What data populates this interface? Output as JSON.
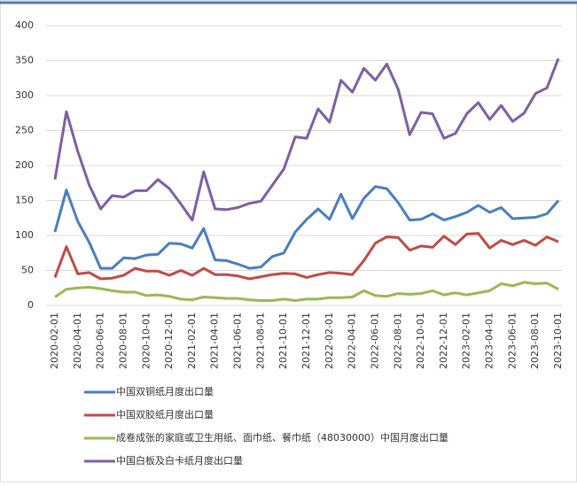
{
  "chart_data": {
    "type": "line",
    "categories": [
      "2020-02-01",
      null,
      "2020-04-01",
      null,
      "2020-06-01",
      null,
      "2020-08-01",
      null,
      "2020-10-01",
      null,
      "2020-12-01",
      null,
      "2021-02-01",
      null,
      "2021-04-01",
      null,
      "2021-06-01",
      null,
      "2021-08-01",
      null,
      "2021-10-01",
      null,
      "2021-12-01",
      null,
      "2022-02-01",
      null,
      "2022-04-01",
      null,
      "2022-06-01",
      null,
      "2022-08-01",
      null,
      "2022-10-01",
      null,
      "2022-12-01",
      null,
      "2023-02-01",
      null,
      "2023-04-01",
      null,
      "2023-06-01",
      null,
      "2023-08-01",
      null,
      "2023-10-01"
    ],
    "series": [
      {
        "name": "中国双铜纸月度出口量",
        "color": "#4a7ebb",
        "values": [
          105,
          165,
          120,
          90,
          53,
          53,
          68,
          67,
          72,
          73,
          89,
          88,
          82,
          110,
          65,
          64,
          59,
          53,
          55,
          70,
          75,
          105,
          123,
          138,
          123,
          159,
          124,
          153,
          170,
          167,
          147,
          122,
          123,
          131,
          122,
          127,
          133,
          143,
          133,
          140,
          124,
          125,
          126,
          131,
          150
        ]
      },
      {
        "name": "中国双胶纸月度出口量",
        "color": "#be4b48",
        "values": [
          40,
          84,
          45,
          47,
          38,
          39,
          43,
          53,
          49,
          49,
          43,
          50,
          43,
          53,
          44,
          44,
          42,
          38,
          41,
          44,
          46,
          45,
          40,
          44,
          47,
          46,
          44,
          64,
          89,
          98,
          97,
          79,
          85,
          83,
          99,
          87,
          102,
          103,
          82,
          93,
          87,
          93,
          86,
          98,
          91
        ]
      },
      {
        "name": "成卷成张的家庭或卫生用纸、面巾纸、餐巾纸（48030000）中国月度出口量",
        "color": "#98b954",
        "values": [
          12,
          23,
          25,
          26,
          24,
          21,
          19,
          19,
          14,
          15,
          13,
          9,
          8,
          12,
          11,
          10,
          10,
          8,
          7,
          7,
          9,
          7,
          9,
          9,
          11,
          11,
          12,
          21,
          14,
          13,
          17,
          16,
          17,
          21,
          15,
          18,
          15,
          18,
          21,
          31,
          28,
          33,
          31,
          32,
          23
        ]
      },
      {
        "name": "中国白板及白卡纸月度出口量",
        "color": "#7d60a0",
        "values": [
          180,
          277,
          220,
          172,
          138,
          157,
          155,
          164,
          164,
          180,
          167,
          145,
          122,
          191,
          138,
          137,
          140,
          146,
          149,
          172,
          195,
          241,
          239,
          281,
          262,
          322,
          305,
          339,
          322,
          345,
          309,
          244,
          276,
          274,
          239,
          246,
          274,
          290,
          266,
          286,
          263,
          275,
          303,
          311,
          353
        ]
      }
    ],
    "ylim": [
      0,
      400
    ],
    "yticks": [
      0,
      50,
      100,
      150,
      200,
      250,
      300,
      350,
      400
    ],
    "grid": true
  }
}
